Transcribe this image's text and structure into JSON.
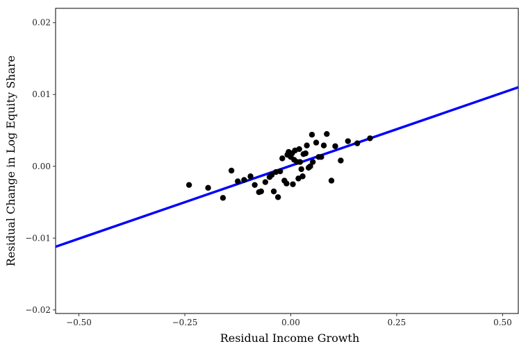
{
  "chart_data": {
    "type": "scatter",
    "title": "",
    "xlabel": "Residual Income Growth",
    "ylabel": "Residual Change in Log Equity Share",
    "xlim": [
      -0.555,
      0.537
    ],
    "ylim": [
      -0.0205,
      0.022
    ],
    "x_ticks": [
      -0.5,
      -0.25,
      0.0,
      0.25,
      0.5
    ],
    "x_tick_labels": [
      "−0.50",
      "−0.25",
      "0.00",
      "0.25",
      "0.50"
    ],
    "y_ticks": [
      -0.02,
      -0.01,
      0.0,
      0.01,
      0.02
    ],
    "y_tick_labels": [
      "−0.02",
      "−0.01",
      "0.00",
      "0.01",
      "0.02"
    ],
    "grid": false,
    "legend": "none",
    "fit_line": {
      "color": "#0000ff",
      "x": [
        -0.555,
        0.537
      ],
      "y": [
        -0.0112,
        0.011
      ]
    },
    "point_color": "#000000",
    "points": [
      {
        "x": -0.24,
        "y": -0.0026
      },
      {
        "x": -0.195,
        "y": -0.003
      },
      {
        "x": -0.16,
        "y": -0.0044
      },
      {
        "x": -0.14,
        "y": -0.0006
      },
      {
        "x": -0.125,
        "y": -0.0021
      },
      {
        "x": -0.11,
        "y": -0.0019
      },
      {
        "x": -0.095,
        "y": -0.0014
      },
      {
        "x": -0.085,
        "y": -0.0026
      },
      {
        "x": -0.075,
        "y": -0.0036
      },
      {
        "x": -0.07,
        "y": -0.0035
      },
      {
        "x": -0.06,
        "y": -0.0022
      },
      {
        "x": -0.05,
        "y": -0.0015
      },
      {
        "x": -0.045,
        "y": -0.0012
      },
      {
        "x": -0.04,
        "y": -0.0035
      },
      {
        "x": -0.035,
        "y": -0.0008
      },
      {
        "x": -0.03,
        "y": -0.0043
      },
      {
        "x": -0.025,
        "y": -0.0007
      },
      {
        "x": -0.02,
        "y": 0.0011
      },
      {
        "x": -0.015,
        "y": -0.002
      },
      {
        "x": -0.01,
        "y": -0.0024
      },
      {
        "x": -0.008,
        "y": 0.0016
      },
      {
        "x": -0.005,
        "y": 0.002
      },
      {
        "x": 0.0,
        "y": 0.0013
      },
      {
        "x": 0.003,
        "y": 0.0018
      },
      {
        "x": 0.005,
        "y": -0.0025
      },
      {
        "x": 0.008,
        "y": 0.0009
      },
      {
        "x": 0.01,
        "y": 0.0022
      },
      {
        "x": 0.015,
        "y": 0.0006
      },
      {
        "x": 0.018,
        "y": -0.0017
      },
      {
        "x": 0.02,
        "y": 0.0024
      },
      {
        "x": 0.022,
        "y": 0.0006
      },
      {
        "x": 0.025,
        "y": -0.0004
      },
      {
        "x": 0.028,
        "y": -0.0014
      },
      {
        "x": 0.03,
        "y": 0.0017
      },
      {
        "x": 0.035,
        "y": 0.0018
      },
      {
        "x": 0.038,
        "y": 0.0029
      },
      {
        "x": 0.042,
        "y": -0.0002
      },
      {
        "x": 0.046,
        "y": 0.0
      },
      {
        "x": 0.05,
        "y": 0.0044
      },
      {
        "x": 0.052,
        "y": 0.0006
      },
      {
        "x": 0.06,
        "y": 0.0033
      },
      {
        "x": 0.066,
        "y": 0.0013
      },
      {
        "x": 0.072,
        "y": 0.0013
      },
      {
        "x": 0.078,
        "y": 0.0029
      },
      {
        "x": 0.085,
        "y": 0.0045
      },
      {
        "x": 0.096,
        "y": -0.002
      },
      {
        "x": 0.105,
        "y": 0.0028
      },
      {
        "x": 0.118,
        "y": 0.0008
      },
      {
        "x": 0.135,
        "y": 0.0035
      },
      {
        "x": 0.157,
        "y": 0.0032
      },
      {
        "x": 0.187,
        "y": 0.0039
      }
    ]
  }
}
